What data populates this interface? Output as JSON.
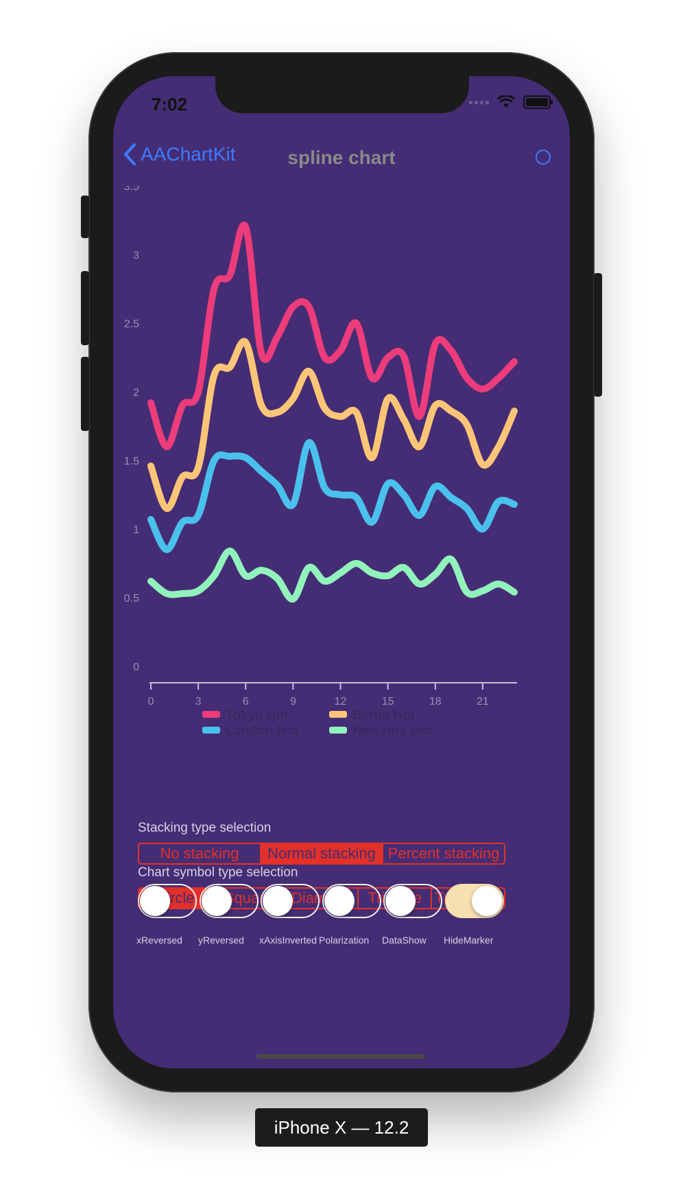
{
  "status_bar": {
    "time": "7:02"
  },
  "navbar": {
    "back_label": "AAChartKit",
    "title": "spline chart"
  },
  "chart_data": {
    "type": "line",
    "subtype": "spline",
    "x": [
      0,
      1,
      2,
      3,
      4,
      5,
      6,
      7,
      8,
      9,
      10,
      11,
      12,
      13,
      14,
      15,
      16,
      17,
      18,
      19,
      20,
      21,
      22,
      23
    ],
    "x_ticks": [
      "0",
      "3",
      "6",
      "9",
      "12",
      "15",
      "18",
      "21"
    ],
    "y_ticks": [
      "0",
      "0.5",
      "1",
      "1.5",
      "2",
      "2.5",
      "3",
      "3.5"
    ],
    "ylim": [
      0,
      3.5
    ],
    "xlim": [
      0,
      23
    ],
    "legend_position": "bottom",
    "series": [
      {
        "name": "Tokyo Hot",
        "color": "#ec3c7b",
        "values": [
          1.92,
          1.6,
          1.9,
          2.0,
          2.75,
          2.85,
          3.2,
          2.28,
          2.4,
          2.62,
          2.62,
          2.25,
          2.3,
          2.5,
          2.1,
          2.25,
          2.26,
          1.82,
          2.35,
          2.3,
          2.1,
          2.02,
          2.1,
          2.22
        ]
      },
      {
        "name": "Berlin Hot",
        "color": "#fdc577",
        "values": [
          1.46,
          1.15,
          1.38,
          1.45,
          2.12,
          2.18,
          2.36,
          1.9,
          1.85,
          1.95,
          2.15,
          1.88,
          1.82,
          1.85,
          1.52,
          1.95,
          1.8,
          1.6,
          1.9,
          1.86,
          1.76,
          1.47,
          1.6,
          1.86
        ]
      },
      {
        "name": "London Hot",
        "color": "#4ac1ec",
        "values": [
          1.07,
          0.85,
          1.05,
          1.1,
          1.5,
          1.53,
          1.52,
          1.42,
          1.32,
          1.18,
          1.63,
          1.3,
          1.25,
          1.23,
          1.05,
          1.33,
          1.25,
          1.1,
          1.31,
          1.23,
          1.15,
          1.0,
          1.2,
          1.18
        ]
      },
      {
        "name": "NewYork Hot",
        "color": "#92f2bc",
        "values": [
          0.62,
          0.53,
          0.53,
          0.55,
          0.66,
          0.84,
          0.66,
          0.7,
          0.64,
          0.49,
          0.72,
          0.62,
          0.68,
          0.75,
          0.68,
          0.66,
          0.72,
          0.6,
          0.67,
          0.78,
          0.54,
          0.55,
          0.6,
          0.54
        ]
      }
    ]
  },
  "stacking": {
    "label": "Stacking type selection",
    "options": [
      "No stacking",
      "Normal stacking",
      "Percent stacking"
    ],
    "selected": "Normal stacking"
  },
  "symbol": {
    "label": "Chart symbol type selection",
    "options": [
      "Circle",
      "Square",
      "Diamond",
      "Triangle",
      "Triangle..."
    ],
    "selected": "Circle"
  },
  "toggles": [
    {
      "label": "xReversed",
      "on": false
    },
    {
      "label": "yReversed",
      "on": false
    },
    {
      "label": "xAxisInverted",
      "on": false
    },
    {
      "label": "Polarization",
      "on": false
    },
    {
      "label": "DataShow",
      "on": false
    },
    {
      "label": "HideMarker",
      "on": true
    }
  ],
  "device_label": "iPhone X — 12.2",
  "colors": {
    "background": "#442d74",
    "accent": "#e2302a",
    "link": "#3d7bff"
  }
}
